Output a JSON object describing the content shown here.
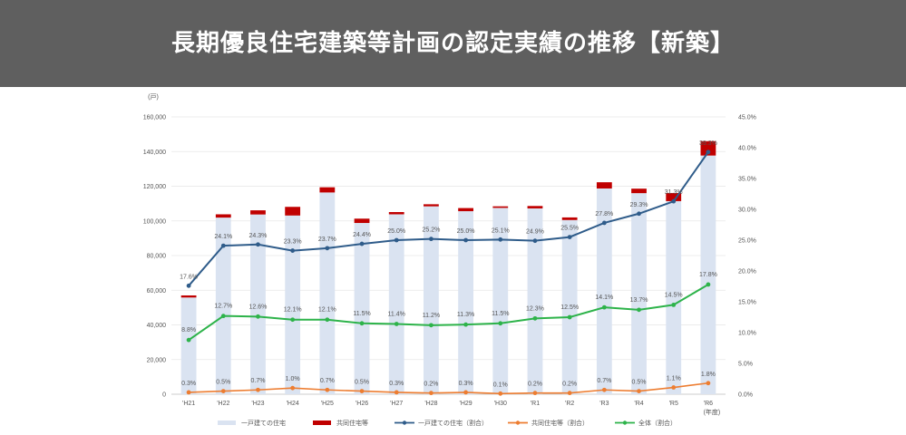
{
  "header": {
    "title": "長期優良住宅建築等計画の認定実績の推移【新築】"
  },
  "chart_data": {
    "type": "bar",
    "y_unit_label": "(戸)",
    "x_unit_label": "(年度)",
    "categories": [
      "'H21",
      "'H22",
      "'H23",
      "'H24",
      "'H25",
      "'H26",
      "'H27",
      "'H28",
      "'H29",
      "'H30",
      "'R1",
      "'R2",
      "'R3",
      "'R4",
      "'R5",
      "'R6"
    ],
    "ylim": [
      0,
      160000
    ],
    "y_ticks": [
      "0",
      "20,000",
      "40,000",
      "60,000",
      "80,000",
      "100,000",
      "120,000",
      "140,000",
      "160,000"
    ],
    "y2lim": [
      0,
      45
    ],
    "y2_ticks": [
      "0.0%",
      "5.0%",
      "10.0%",
      "15.0%",
      "20.0%",
      "25.0%",
      "30.0%",
      "35.0%",
      "40.0%",
      "45.0%"
    ],
    "colors": {
      "detached_bar": "#dae3f1",
      "multi_bar": "#c00000",
      "detached_line": "#2f5c8a",
      "multi_line": "#ed7d31",
      "total_line": "#2db34a"
    },
    "series": [
      {
        "name": "一戸建ての住宅",
        "kind": "bar",
        "values": [
          55800,
          101900,
          103700,
          103100,
          116400,
          98800,
          103800,
          108400,
          105600,
          107500,
          107200,
          100500,
          118700,
          116000,
          111400,
          137700
        ]
      },
      {
        "name": "共同住宅等",
        "kind": "bar",
        "values": [
          1200,
          1900,
          2400,
          5000,
          3000,
          2500,
          1300,
          1200,
          1800,
          900,
          1400,
          1500,
          3600,
          2600,
          4700,
          8300
        ]
      },
      {
        "name": "一戸建ての住宅（割合）",
        "kind": "line",
        "axis": "right",
        "values": [
          17.6,
          24.1,
          24.3,
          23.3,
          23.7,
          24.4,
          25.0,
          25.2,
          25.0,
          25.1,
          24.9,
          25.5,
          27.8,
          29.3,
          31.3,
          39.3
        ],
        "labels": [
          "17.6%",
          "24.1%",
          "24.3%",
          "23.3%",
          "23.7%",
          "24.4%",
          "25.0%",
          "25.2%",
          "25.0%",
          "25.1%",
          "24.9%",
          "25.5%",
          "27.8%",
          "29.3%",
          "31.3%",
          "39.3%"
        ]
      },
      {
        "name": "共同住宅等（割合）",
        "kind": "line",
        "axis": "right",
        "values": [
          0.3,
          0.5,
          0.7,
          1.0,
          0.7,
          0.5,
          0.3,
          0.2,
          0.3,
          0.1,
          0.2,
          0.2,
          0.7,
          0.5,
          1.1,
          1.8
        ],
        "labels": [
          "0.3%",
          "0.5%",
          "0.7%",
          "1.0%",
          "0.7%",
          "0.5%",
          "0.3%",
          "0.2%",
          "0.3%",
          "0.1%",
          "0.2%",
          "0.2%",
          "0.7%",
          "0.5%",
          "1.1%",
          "1.8%"
        ]
      },
      {
        "name": "全体（割合）",
        "kind": "line",
        "axis": "right",
        "values": [
          8.8,
          12.7,
          12.6,
          12.1,
          12.1,
          11.5,
          11.4,
          11.2,
          11.3,
          11.5,
          12.3,
          12.5,
          14.1,
          13.7,
          14.5,
          17.8
        ],
        "labels": [
          "8.8%",
          "12.7%",
          "12.6%",
          "12.1%",
          "12.1%",
          "11.5%",
          "11.4%",
          "11.2%",
          "11.3%",
          "11.5%",
          "12.3%",
          "12.5%",
          "14.1%",
          "13.7%",
          "14.5%",
          "17.8%"
        ]
      }
    ],
    "legend": [
      "一戸建ての住宅",
      "共同住宅等",
      "一戸建ての住宅（割合）",
      "共同住宅等（割合）",
      "全体（割合）"
    ],
    "legend_position": "bottom",
    "grid": true
  }
}
